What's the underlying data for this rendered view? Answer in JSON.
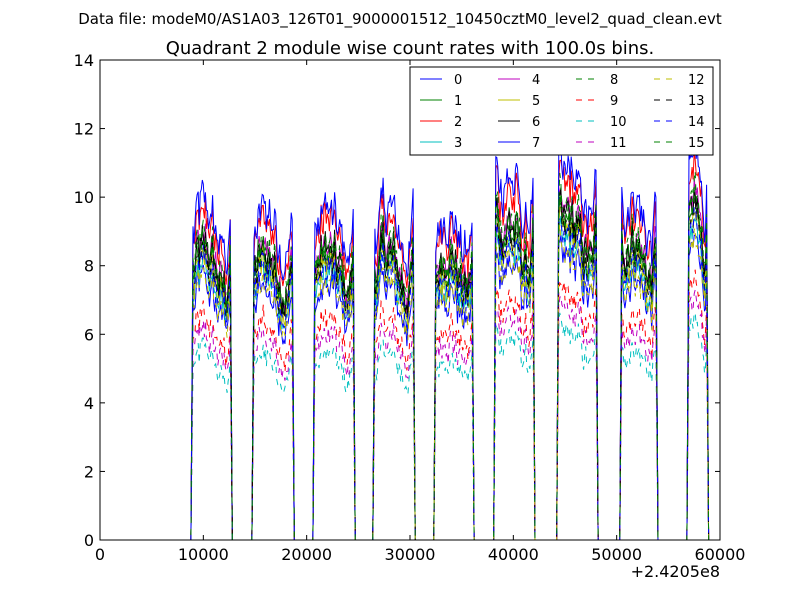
{
  "chart_data": {
    "type": "line",
    "suptitle": "Data file: modeM0/AS1A03_126T01_9000001512_10450cztM0_level2_quad_clean.evt",
    "title": "Quadrant 2 module wise count rates with 100.0s bins.",
    "xlabel": "",
    "ylabel": "",
    "xlim": [
      0,
      60000
    ],
    "ylim": [
      0,
      14
    ],
    "xticks": [
      0,
      10000,
      20000,
      30000,
      40000,
      50000,
      60000
    ],
    "yticks": [
      0,
      2,
      4,
      6,
      8,
      10,
      12,
      14
    ],
    "x_offset_label": "+2.4205e8",
    "bin_seconds": 100,
    "legend_position": "top-right",
    "gti_segments": [
      [
        9000,
        12600
      ],
      [
        14900,
        18600
      ],
      [
        20800,
        24500
      ],
      [
        26600,
        30300
      ],
      [
        32500,
        36000
      ],
      [
        38300,
        41900
      ],
      [
        44400,
        48000
      ],
      [
        50500,
        53800
      ],
      [
        57000,
        58700
      ]
    ],
    "segment_baselines": [
      1.0,
      1.0,
      1.0,
      1.0,
      1.0,
      1.1,
      1.1,
      1.05,
      1.15
    ],
    "series": [
      {
        "name": "0",
        "color": "#0000ff",
        "dash": "solid",
        "level": 6.8
      },
      {
        "name": "1",
        "color": "#008000",
        "dash": "solid",
        "level": 7.6
      },
      {
        "name": "2",
        "color": "#ff0000",
        "dash": "solid",
        "level": 8.6
      },
      {
        "name": "3",
        "color": "#00bfbf",
        "dash": "solid",
        "level": 7.2
      },
      {
        "name": "4",
        "color": "#bf00bf",
        "dash": "solid",
        "level": 7.9
      },
      {
        "name": "5",
        "color": "#bfbf00",
        "dash": "solid",
        "level": 7.4
      },
      {
        "name": "6",
        "color": "#000000",
        "dash": "solid",
        "level": 7.8
      },
      {
        "name": "7",
        "color": "#0000ff",
        "dash": "solid",
        "level": 8.9
      },
      {
        "name": "8",
        "color": "#008000",
        "dash": "dashed",
        "level": 7.7
      },
      {
        "name": "9",
        "color": "#ff0000",
        "dash": "dashed",
        "level": 5.9
      },
      {
        "name": "10",
        "color": "#00bfbf",
        "dash": "dashed",
        "level": 5.0
      },
      {
        "name": "11",
        "color": "#bf00bf",
        "dash": "dashed",
        "level": 5.5
      },
      {
        "name": "12",
        "color": "#bfbf00",
        "dash": "dashed",
        "level": 6.9
      },
      {
        "name": "13",
        "color": "#000000",
        "dash": "dashed",
        "level": 7.5
      },
      {
        "name": "14",
        "color": "#0000ff",
        "dash": "dashed",
        "level": 7.3
      },
      {
        "name": "15",
        "color": "#008000",
        "dash": "dashed",
        "level": 8.0
      }
    ]
  }
}
